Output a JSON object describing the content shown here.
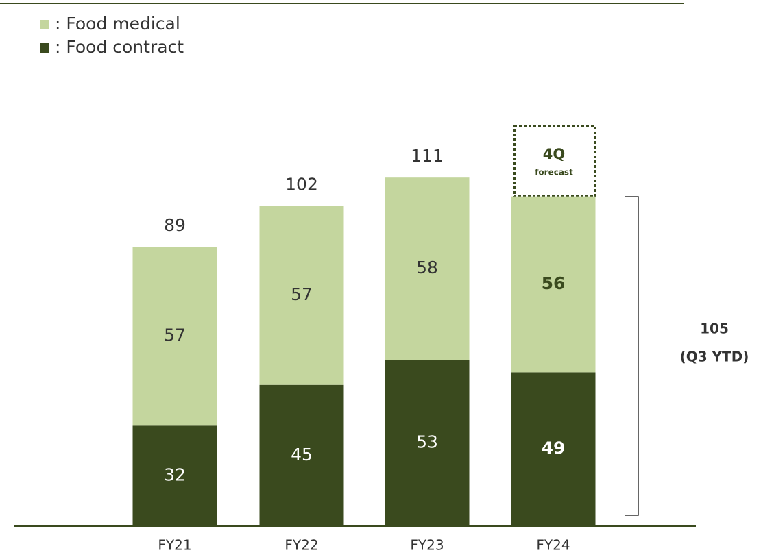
{
  "chart_data": {
    "type": "stacked_bar",
    "categories": [
      "FY21",
      "FY22",
      "FY23",
      "FY24"
    ],
    "series": [
      {
        "name": ": Food contract",
        "color": "#3a4a1e",
        "values": [
          32,
          45,
          53,
          49
        ]
      },
      {
        "name": ": Food medical",
        "color": "#c4d69e",
        "values": [
          57,
          57,
          58,
          56
        ]
      }
    ],
    "totals": [
      89,
      102,
      111
    ],
    "ylim": [
      0,
      120
    ],
    "annotations": {
      "forecast_title": "4Q",
      "forecast_note": "forecast",
      "ytd_value": "105",
      "ytd_note": "(Q3 YTD)"
    }
  }
}
